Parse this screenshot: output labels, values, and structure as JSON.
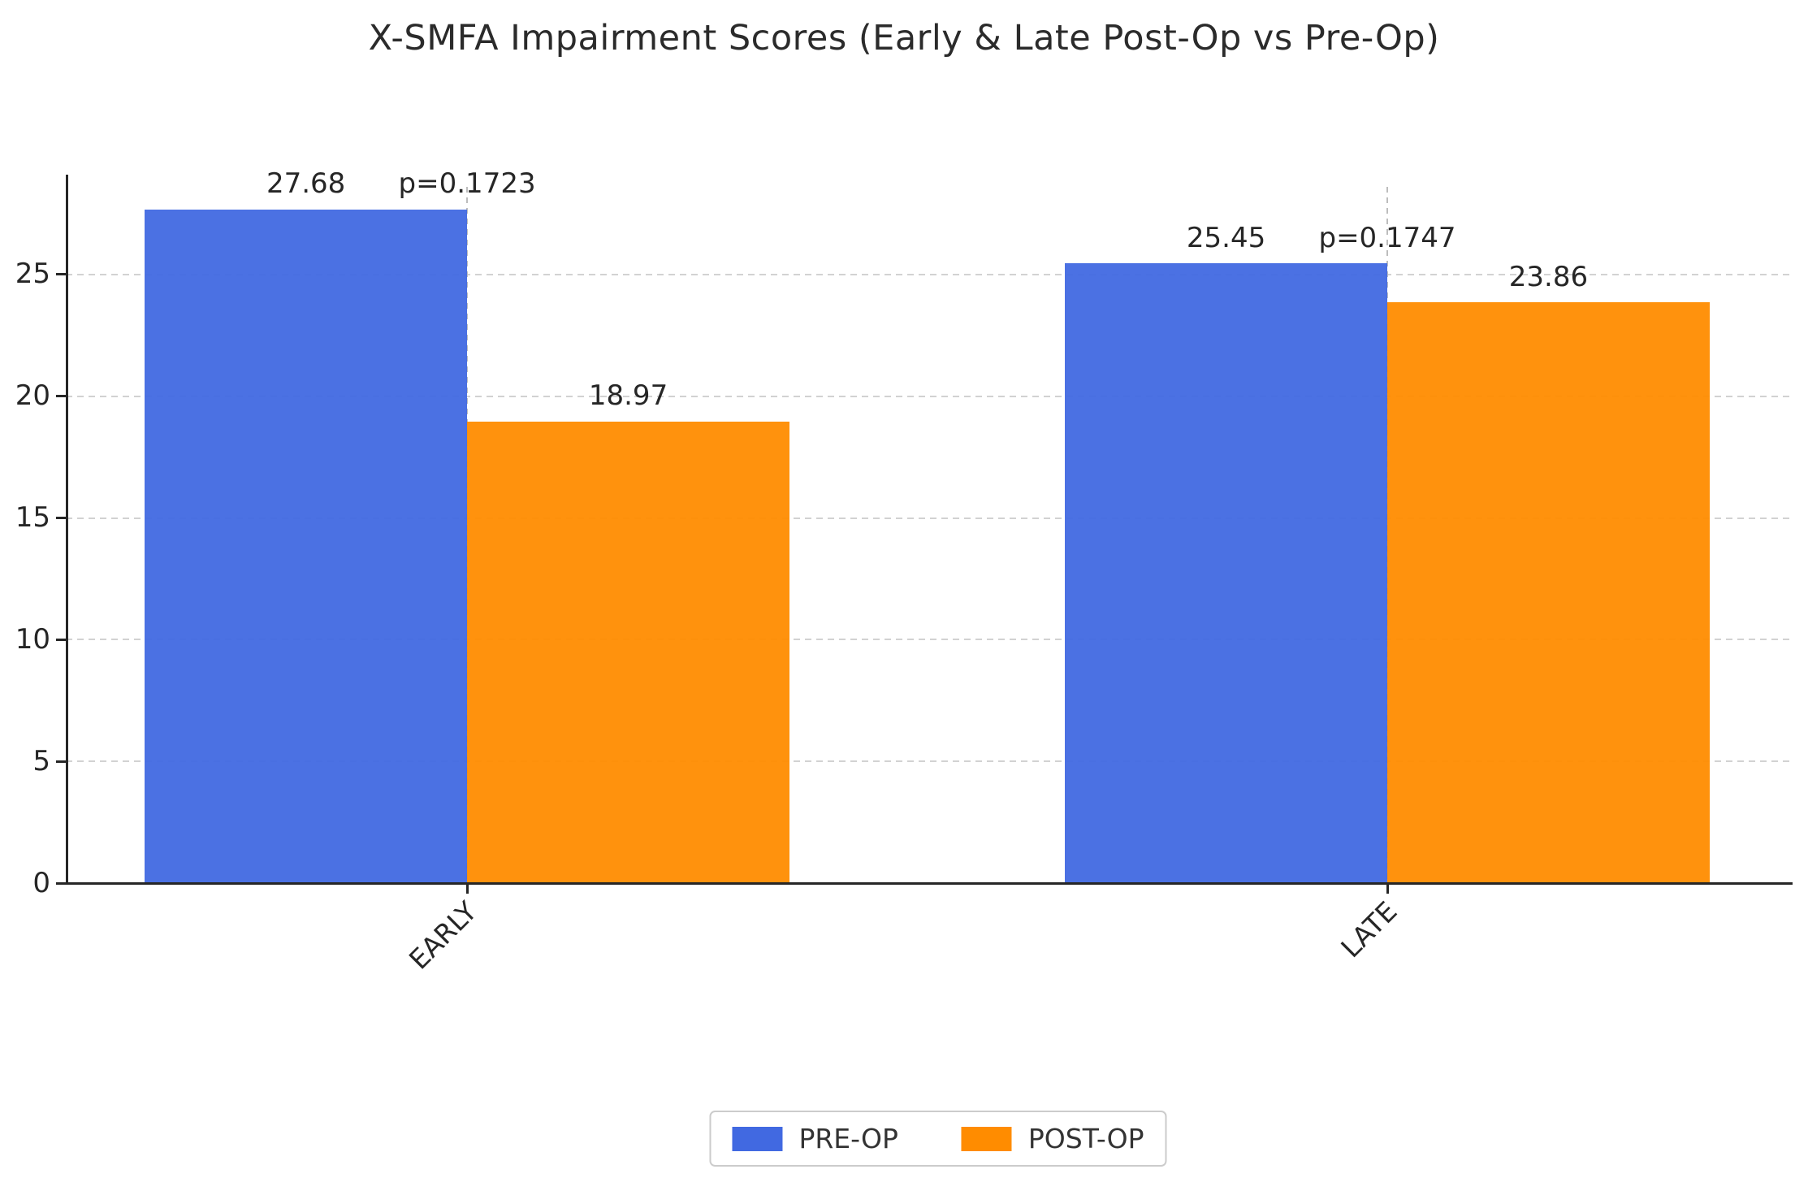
{
  "chart_data": {
    "type": "bar",
    "title": "X-SMFA Impairment Scores (Early & Late Post-Op vs Pre-Op)",
    "categories": [
      "EARLY",
      "LATE"
    ],
    "series": [
      {
        "name": "PRE-OP",
        "color": "#4169E1",
        "values": [
          27.68,
          25.45
        ]
      },
      {
        "name": "POST-OP",
        "color": "#FF8C00",
        "values": [
          18.97,
          23.86
        ]
      }
    ],
    "value_labels": [
      [
        "27.68",
        "25.45"
      ],
      [
        "18.97",
        "23.86"
      ]
    ],
    "annotations": [
      {
        "category": "EARLY",
        "label": "p=0.1723"
      },
      {
        "category": "LATE",
        "label": "p=0.1747"
      }
    ],
    "xlabel": "",
    "ylabel": "",
    "yticks": [
      0,
      5,
      10,
      15,
      20,
      25
    ],
    "ylim": [
      0,
      29.1
    ],
    "grid": "dashed horizontal gridlines, light gray, drawn at y ticks",
    "group_divider": "dashed vertical gray line at each category center",
    "axis_color": "#262626",
    "grid_color": "#d2d2d2",
    "legend_position": "bottom-center",
    "legend_entries": [
      "PRE-OP",
      "POST-OP"
    ]
  }
}
